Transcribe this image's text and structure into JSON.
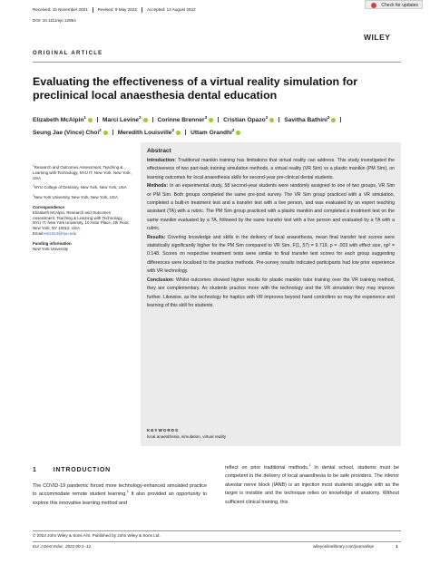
{
  "header": {
    "received": "Received: 15 November 2021",
    "revised": "Revised: 9 May 2022",
    "accepted": "Accepted: 14 August 2022",
    "doi": "DOI: 10.1111/eje.12854",
    "publisher": "WILEY",
    "update_badge": "Check for updates"
  },
  "article_type": "ORIGINAL ARTICLE",
  "title": "Evaluating the effectiveness of a virtual reality simulation for preclinical local anaesthesia dental education",
  "authors": [
    {
      "name": "Elizabeth McAlpin",
      "sup": "1"
    },
    {
      "name": "Marci Levine",
      "sup": "2"
    },
    {
      "name": "Corinne Brenner",
      "sup": "3"
    },
    {
      "name": "Cristian Opazo",
      "sup": "2"
    },
    {
      "name": "Savitha Bathini",
      "sup": "2"
    },
    {
      "name": "Seung Jae (Vince) Choi",
      "sup": "2"
    },
    {
      "name": "Meredith Louisville",
      "sup": "2"
    },
    {
      "name": "Uttam Grandhi",
      "sup": "2"
    }
  ],
  "affiliations": [
    {
      "sup": "1",
      "text": "Research and Outcomes Assessment, Teaching & Learning with Technology, NYU IT, New York, New York, USA"
    },
    {
      "sup": "2",
      "text": "NYU College of Dentistry, New York, New York, USA"
    },
    {
      "sup": "3",
      "text": "New York University, New York, New York, USA"
    }
  ],
  "correspondence": {
    "heading": "Correspondence",
    "text": "Elizabeth McAlpin, Research and Outcomes Assessment, Teaching & Learning with Technology, NYU IT, New York University, 10 Astor Place, 4th Floor, New York, NY 10012, USA.",
    "email_label": "Email:",
    "email": "em2414@nyu.edu"
  },
  "funding": {
    "heading": "Funding information",
    "text": "New York University"
  },
  "abstract": {
    "heading": "Abstract",
    "sections": [
      {
        "label": "Introduction:",
        "text": "Traditional manikin training has limitations that virtual reality can address. This study investigated the effectiveness of two part-task training simulation methods, a virtual reality (VR Sim) vs a plastic manikin (PM Sim), on learning outcomes for local anaesthesia skills for second-year pre-clinical dental students."
      },
      {
        "label": "Methods:",
        "text": "In an experimental study, 58 second-year students were randomly assigned to one of two groups, VR Sim or PM Sim. Both groups completed the same pre-post survey. The VR Sim group practiced with a VR simulation, completed a built-in treatment test and a transfer test with a live person, and was evaluated by an expert teaching assistant (TA) with a rubric. The PM Sim group practiced with a plastic manikin and completed a treatment test on the same manikin evaluated by a TA, followed by the same transfer test with a live person and evaluated by a TA with a rubric."
      },
      {
        "label": "Results:",
        "text": "Covering knowledge and skills in the delivery of local anaesthesia, mean final transfer test scores were statistically significantly higher for the PM Sim compared to VR Sim, F(1, 57) = 9.719, p = .003 with effect size, ηp² = 0.148. Scores on respective treatment tests were similar to final transfer test scores for each group suggesting differences were localised to the practice methods. Pre-survey results indicated participants had low prior experience with VR technology."
      },
      {
        "label": "Conclusion:",
        "text": "Whilst outcomes showed higher results for plastic manikin tutor training over the VR training method, they are complementary. As students practice more with the technology and the VR simulation they may improve further. Likewise, as the technology for haptics with VR improves beyond hand controllers so may the experience and learning of this skill for students."
      }
    ]
  },
  "keywords": {
    "heading": "KEYWORDS",
    "text": "local anaesthesia, simulation, virtual reality"
  },
  "introduction": {
    "number": "1",
    "heading": "INTRODUCTION",
    "columns": [
      [
        {
          "text": "The COVID-19 pandemic forced more technology-enhanced simulated practice to accommodate remote student learning."
        },
        {
          "sup": "1"
        },
        {
          "text": " It also provided an opportunity to explore this innovative learning method and"
        }
      ],
      [
        {
          "text": "reflect on prior traditional methods."
        },
        {
          "sup": "1"
        },
        {
          "text": " In dental school, students must be competent in the delivery of local anaesthesia to be safe providers. The inferior alveolar nerve block (IANB) is an injection most students struggle with as the target is invisible and the technique relies on knowledge of anatomy. Without sufficient clinical training, this"
        }
      ]
    ]
  },
  "footer": {
    "copyright": "© 2022 John Wiley & Sons A/S. Published by John Wiley & Sons Ltd.",
    "citation": "Eur J Dent Educ. 2022;00:1–12.",
    "url": "wileyonlinelibrary.com/journal/eje",
    "page": "1"
  }
}
